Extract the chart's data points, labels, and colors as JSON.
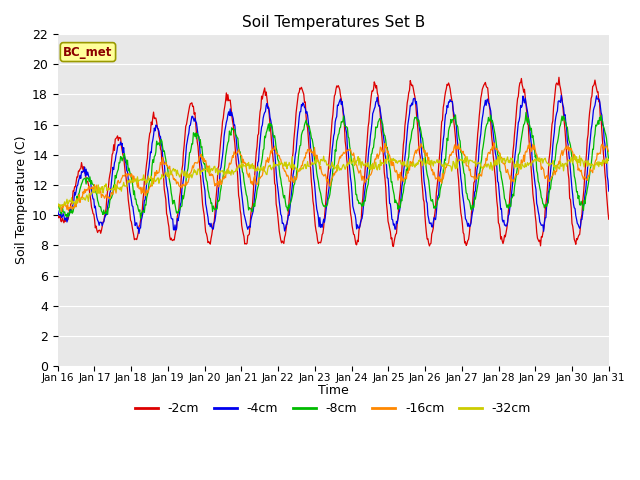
{
  "title": "Soil Temperatures Set B",
  "xlabel": "Time",
  "ylabel": "Soil Temperature (C)",
  "ylim": [
    0,
    22
  ],
  "yticks": [
    0,
    2,
    4,
    6,
    8,
    10,
    12,
    14,
    16,
    18,
    20,
    22
  ],
  "xtick_labels": [
    "Jan 16",
    "Jan 17",
    "Jan 18",
    "Jan 19",
    "Jan 20",
    "Jan 21",
    "Jan 22",
    "Jan 23",
    "Jan 24",
    "Jan 25",
    "Jan 26",
    "Jan 27",
    "Jan 28",
    "Jan 29",
    "Jan 30",
    "Jan 31"
  ],
  "series_colors": {
    "-2cm": "#dd0000",
    "-4cm": "#0000ee",
    "-8cm": "#00bb00",
    "-16cm": "#ff8800",
    "-32cm": "#cccc00"
  },
  "legend_labels": [
    "-2cm",
    "-4cm",
    "-8cm",
    "-16cm",
    "-32cm"
  ],
  "legend_colors": [
    "#dd0000",
    "#0000ee",
    "#00bb00",
    "#ff8800",
    "#cccc00"
  ],
  "annotation_text": "BC_met",
  "annotation_color": "#8b0000",
  "annotation_bg": "#ffff99",
  "annotation_edge": "#999900",
  "bg_color_plot": "#e8e8e8",
  "bg_color_fig": "#ffffff",
  "grid_color": "#ffffff"
}
